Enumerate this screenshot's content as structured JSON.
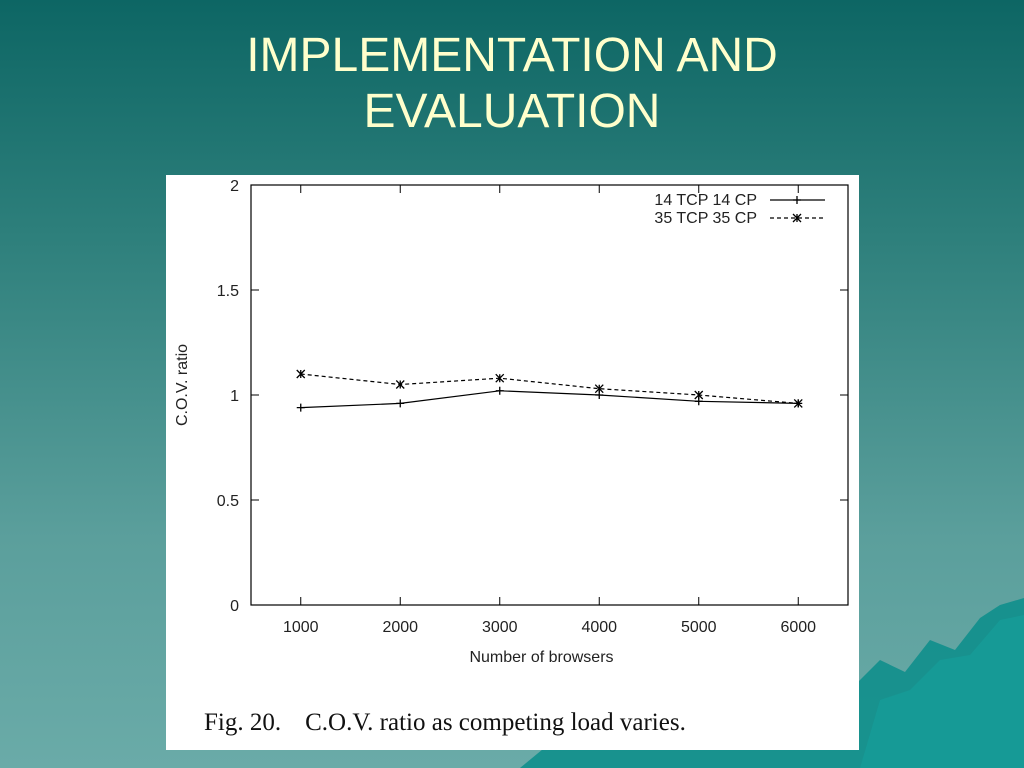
{
  "slide": {
    "title_line1": "IMPLEMENTATION AND",
    "title_line2": "EVALUATION"
  },
  "caption": {
    "fig_number": "Fig. 20.",
    "text": "C.O.V. ratio as competing load varies."
  },
  "colors": {
    "title_text": "#ffffcc",
    "background_top": "#0d6664",
    "background_bottom": "#6aaba8",
    "plot_line": "#000000"
  },
  "chart_data": {
    "type": "line",
    "xlabel": "Number of browsers",
    "ylabel": "C.O.V. ratio",
    "x": [
      1000,
      2000,
      3000,
      4000,
      5000,
      6000
    ],
    "xlim": [
      500,
      6500
    ],
    "ylim": [
      0,
      2
    ],
    "xticks": [
      1000,
      2000,
      3000,
      4000,
      5000,
      6000
    ],
    "yticks": [
      0,
      0.5,
      1,
      1.5,
      2
    ],
    "ytick_labels": [
      "0",
      "0.5",
      "1",
      "1.5",
      "2"
    ],
    "legend_position": "top-right",
    "grid": false,
    "series": [
      {
        "name": "14 TCP 14 CP",
        "marker": "plus",
        "dash": "solid",
        "values": [
          0.94,
          0.96,
          1.02,
          1.0,
          0.97,
          0.96
        ]
      },
      {
        "name": "35 TCP 35 CP",
        "marker": "cross",
        "dash": "dashed",
        "values": [
          1.1,
          1.05,
          1.08,
          1.03,
          1.0,
          0.96
        ]
      }
    ]
  }
}
